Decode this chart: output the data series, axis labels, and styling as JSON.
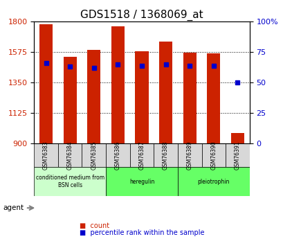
{
  "title": "GDS1518 / 1368069_at",
  "samples": [
    "GSM76383",
    "GSM76384",
    "GSM76385",
    "GSM76386",
    "GSM76387",
    "GSM76388",
    "GSM76389",
    "GSM76390",
    "GSM76391"
  ],
  "count_values": [
    1780,
    1540,
    1590,
    1765,
    1580,
    1650,
    1570,
    1565,
    980
  ],
  "percentile_values": [
    66,
    63,
    62,
    65,
    64,
    65,
    64,
    64,
    50
  ],
  "ylim_left": [
    900,
    1800
  ],
  "ylim_right": [
    0,
    100
  ],
  "yticks_left": [
    900,
    1125,
    1350,
    1575,
    1800
  ],
  "yticks_right": [
    0,
    25,
    50,
    75,
    100
  ],
  "bar_color": "#cc2200",
  "dot_color": "#0000cc",
  "groups": [
    {
      "label": "conditioned medium from\nBSN cells",
      "start": 0,
      "end": 3,
      "color": "#ccffcc"
    },
    {
      "label": "heregulin",
      "start": 3,
      "end": 6,
      "color": "#66ff66"
    },
    {
      "label": "pleiotrophin",
      "start": 6,
      "end": 9,
      "color": "#66ff66"
    }
  ],
  "bar_width": 0.55,
  "tick_label_fontsize": 7.5,
  "title_fontsize": 11,
  "axis_label_color_left": "#cc2200",
  "axis_label_color_right": "#0000cc",
  "grid_color": "#000000",
  "bg_color": "#ffffff",
  "plot_bg_color": "#ffffff"
}
